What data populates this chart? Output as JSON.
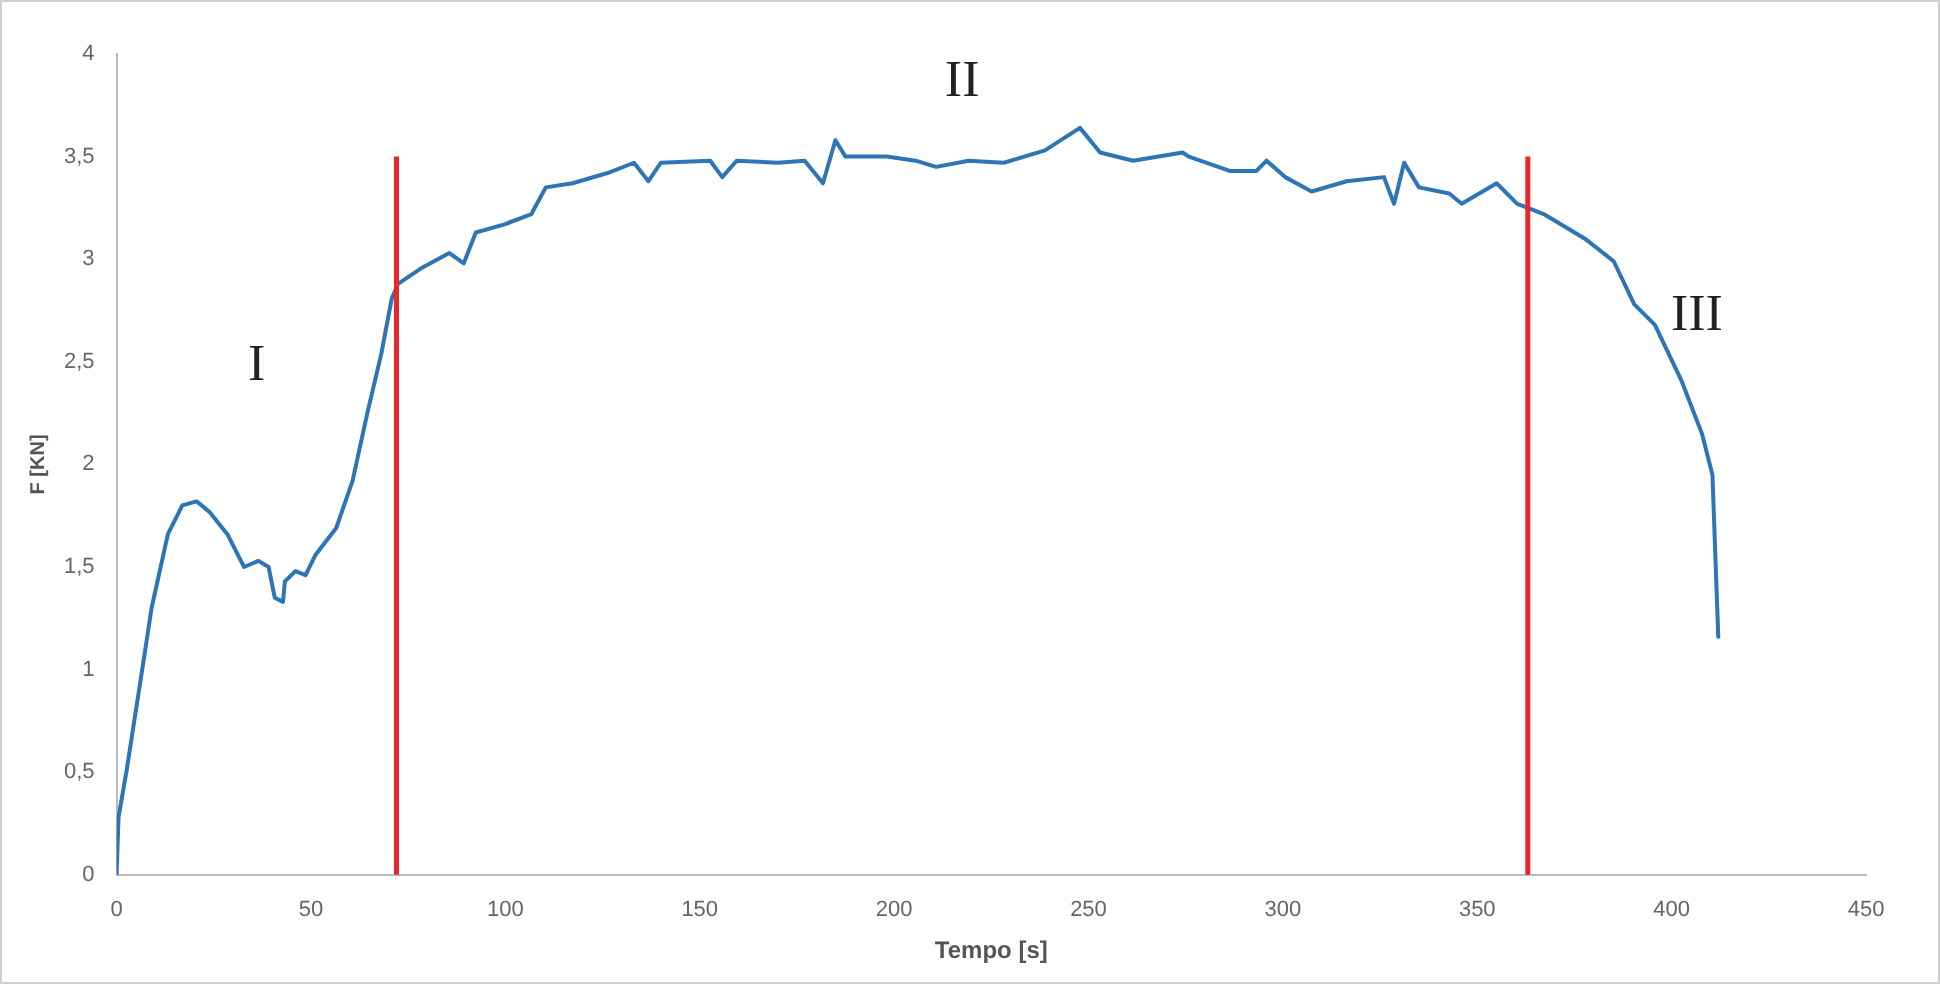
{
  "chart_data": {
    "type": "line",
    "xlabel": "Tempo [s]",
    "ylabel": "F [KN]",
    "xlim": [
      0,
      450
    ],
    "xticks": [
      0,
      50,
      100,
      150,
      200,
      250,
      300,
      350,
      400,
      450
    ],
    "ylim": [
      0,
      4
    ],
    "yticks": [
      0,
      {
        "value": 0.5,
        "label": "0,5"
      },
      1,
      {
        "value": 1.5,
        "label": "1,5"
      },
      2,
      {
        "value": 2.5,
        "label": "2,5"
      },
      3,
      {
        "value": 3.5,
        "label": "3,5"
      },
      4
    ],
    "grid": false,
    "legend": false,
    "marker": "none",
    "line_style": "solid",
    "series": [
      {
        "color": "#2e75b6",
        "x": [
          0,
          0.5,
          2.6,
          7.4,
          9,
          13.2,
          16.9,
          20.6,
          23.8,
          28.5,
          32.8,
          36.5,
          39.1,
          40.7,
          42.8,
          43.3,
          46,
          48.6,
          51.2,
          56.5,
          60.7,
          64.5,
          68.1,
          70.8,
          72.4,
          78.7,
          85.6,
          89.3,
          92.4,
          99.8,
          106.7,
          110.4,
          117.3,
          126.3,
          133.1,
          136.8,
          140,
          152.7,
          155.8,
          159.5,
          170.1,
          177,
          181.7,
          184.9,
          187.5,
          198.1,
          205.5,
          210.8,
          219.2,
          228.2,
          238.8,
          247.8,
          253,
          261.5,
          274.2,
          275.8,
          286.3,
          293.2,
          295.8,
          300.6,
          307.4,
          316.4,
          326,
          328.6,
          331.2,
          335,
          342.8,
          346,
          355,
          360.3,
          363,
          367.1,
          377.7,
          385.1,
          390.4,
          395.7,
          402.5,
          407.8,
          410.5,
          412
        ],
        "values": [
          0,
          0.28,
          0.51,
          1.1,
          1.3,
          1.66,
          1.8,
          1.82,
          1.77,
          1.66,
          1.5,
          1.53,
          1.5,
          1.35,
          1.33,
          1.43,
          1.48,
          1.46,
          1.56,
          1.69,
          1.92,
          2.25,
          2.54,
          2.81,
          2.88,
          2.96,
          3.03,
          2.98,
          3.13,
          3.17,
          3.22,
          3.35,
          3.37,
          3.42,
          3.47,
          3.38,
          3.47,
          3.48,
          3.4,
          3.48,
          3.47,
          3.48,
          3.37,
          3.58,
          3.5,
          3.5,
          3.48,
          3.45,
          3.48,
          3.47,
          3.53,
          3.64,
          3.52,
          3.48,
          3.52,
          3.5,
          3.43,
          3.43,
          3.48,
          3.4,
          3.33,
          3.38,
          3.4,
          3.27,
          3.47,
          3.35,
          3.32,
          3.27,
          3.37,
          3.27,
          3.25,
          3.22,
          3.1,
          2.99,
          2.78,
          2.68,
          2.41,
          2.15,
          1.95,
          1.16
        ]
      }
    ],
    "ref_lines": [
      {
        "axis": "x",
        "value": 72,
        "color": "#e8262b"
      },
      {
        "axis": "x",
        "value": 363,
        "color": "#e8262b"
      }
    ],
    "annotations": [
      "I",
      "II",
      "III"
    ]
  }
}
